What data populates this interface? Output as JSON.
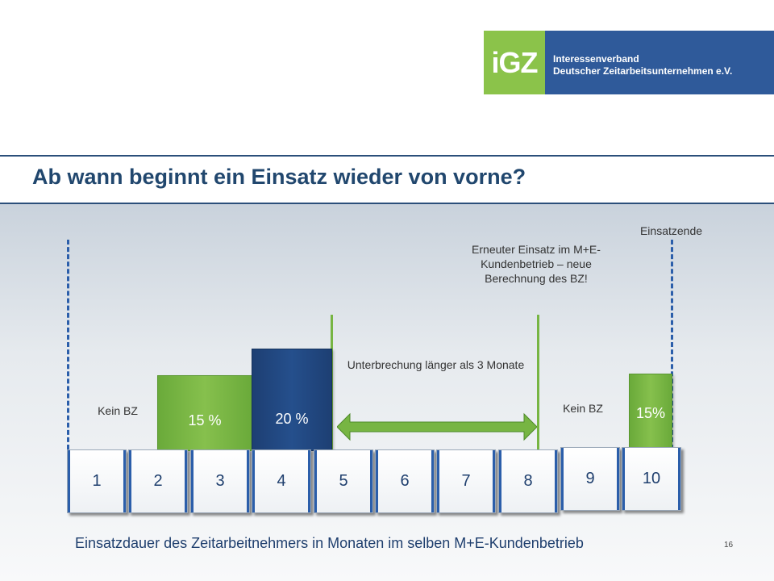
{
  "title": "Ab wann beginnt ein Einsatz wieder von vorne?",
  "logo": {
    "mark": "iGZ",
    "line1": "Interessenverband",
    "line2": "Deutscher Zeitarbeitsunternehmen e.V."
  },
  "labels": {
    "einsatzende": "Einsatzende",
    "erneuter_einsatz": "Erneuter Einsatz im M+E-Kundenbetrieb – neue Berechnung des BZ!",
    "kein_bz_left": "Kein BZ",
    "kein_bz_right": "Kein BZ",
    "unterbrechung": "Unterbrechung länger als 3 Monate"
  },
  "bars": [
    {
      "label": "15 %",
      "color": "#77b543"
    },
    {
      "label": "20 %",
      "color": "#1f4680"
    },
    {
      "label": "15%",
      "color": "#77b543"
    }
  ],
  "months": [
    "1",
    "2",
    "3",
    "4",
    "5",
    "6",
    "7",
    "8",
    "9",
    "10"
  ],
  "footer": "Einsatzdauer des Zeitarbeitnehmers in Monaten im selben M+E-Kundenbetrieb",
  "page_number": "16"
}
